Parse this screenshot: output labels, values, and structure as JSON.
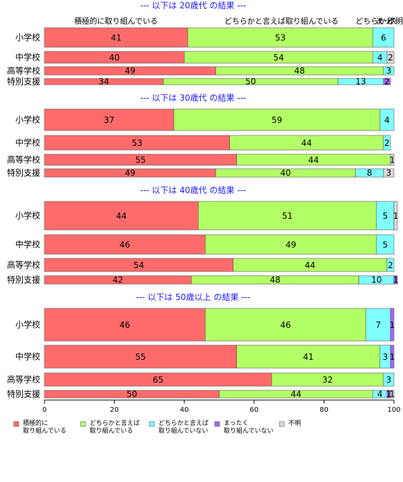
{
  "chart_data": {
    "type": "bar",
    "orientation": "horizontal-stacked-100",
    "column_headers": [
      "積極的に取り組んでいる",
      "どちらかと言えば取り組んでいる",
      "どちらかと言えば取り組んでいない",
      "まったく取り組んでいない",
      "不明"
    ],
    "header_visible_text": [
      "積極的に取り組んでいる",
      "どちらかと言えば取り組んでいる",
      "どちらかと",
      "まった",
      "不明"
    ],
    "series": [
      {
        "name": "積極的に\n取り組んでいる",
        "color": "#ff6b6b"
      },
      {
        "name": "どちらかと言えば\n取り組んでいる",
        "color": "#b3ff66"
      },
      {
        "name": "どちらかと言えば\n取り組んでいない",
        "color": "#80ffff"
      },
      {
        "name": "まったく\n取り組んでいない",
        "color": "#a366ff"
      },
      {
        "name": "不明",
        "color": "#d9d9d9"
      }
    ],
    "xlim": [
      0,
      100
    ],
    "xticks": [
      0,
      20,
      40,
      60,
      80,
      100
    ],
    "panels": [
      {
        "title": "--- 以下は 20歳代 の結果 ---",
        "rows": [
          {
            "label": "小学校",
            "values": [
              41,
              53,
              6,
              0,
              0
            ],
            "labels": [
              "41",
              "53",
              "6",
              "",
              ""
            ]
          },
          {
            "label": "中学校",
            "values": [
              40,
              54,
              4,
              0,
              2
            ],
            "labels": [
              "40",
              "54",
              "4",
              "",
              "2"
            ]
          },
          {
            "label": "高等学校",
            "values": [
              49,
              48,
              3,
              0,
              0
            ],
            "labels": [
              "49",
              "48",
              "3",
              "",
              ""
            ]
          },
          {
            "label": "特別支援",
            "values": [
              34,
              50,
              13,
              2,
              0
            ],
            "labels": [
              "34",
              "50",
              "13",
              "2",
              ""
            ]
          }
        ]
      },
      {
        "title": "--- 以下は 30歳代 の結果 ---",
        "rows": [
          {
            "label": "小学校",
            "values": [
              37,
              59,
              4,
              0,
              0
            ],
            "labels": [
              "37",
              "59",
              "4",
              "",
              ""
            ]
          },
          {
            "label": "中学校",
            "values": [
              53,
              44,
              2,
              0,
              0
            ],
            "labels": [
              "53",
              "44",
              "2",
              "",
              ""
            ]
          },
          {
            "label": "高等学校",
            "values": [
              55,
              44,
              0,
              0,
              1
            ],
            "labels": [
              "55",
              "44",
              "",
              "",
              "1"
            ]
          },
          {
            "label": "特別支援",
            "values": [
              49,
              40,
              8,
              0,
              3
            ],
            "labels": [
              "49",
              "40",
              "8",
              "",
              "3"
            ]
          }
        ]
      },
      {
        "title": "--- 以下は 40歳代 の結果 ---",
        "rows": [
          {
            "label": "小学校",
            "values": [
              44,
              51,
              5,
              0,
              1
            ],
            "labels": [
              "44",
              "51",
              "5",
              "",
              "1"
            ]
          },
          {
            "label": "中学校",
            "values": [
              46,
              49,
              5,
              0,
              0
            ],
            "labels": [
              "46",
              "49",
              "5",
              "",
              ""
            ]
          },
          {
            "label": "高等学校",
            "values": [
              54,
              44,
              2,
              0,
              0
            ],
            "labels": [
              "54",
              "44",
              "2",
              "",
              ""
            ]
          },
          {
            "label": "特別支援",
            "values": [
              42,
              48,
              10,
              1,
              0
            ],
            "labels": [
              "42",
              "48",
              "10",
              "1",
              ""
            ]
          }
        ]
      },
      {
        "title": "--- 以下は 50歳以上 の結果 ---",
        "rows": [
          {
            "label": "小学校",
            "values": [
              46,
              46,
              7,
              1,
              0
            ],
            "labels": [
              "46",
              "46",
              "7",
              "1",
              ""
            ]
          },
          {
            "label": "中学校",
            "values": [
              55,
              41,
              3,
              1,
              0
            ],
            "labels": [
              "55",
              "41",
              "3",
              "1",
              ""
            ]
          },
          {
            "label": "高等学校",
            "values": [
              65,
              32,
              3,
              0,
              0
            ],
            "labels": [
              "65",
              "32",
              "3",
              "",
              ""
            ]
          },
          {
            "label": "特別支援",
            "values": [
              50,
              44,
              4,
              1,
              1
            ],
            "labels": [
              "50",
              "44",
              "4",
              "1",
              "1"
            ]
          }
        ]
      }
    ]
  }
}
